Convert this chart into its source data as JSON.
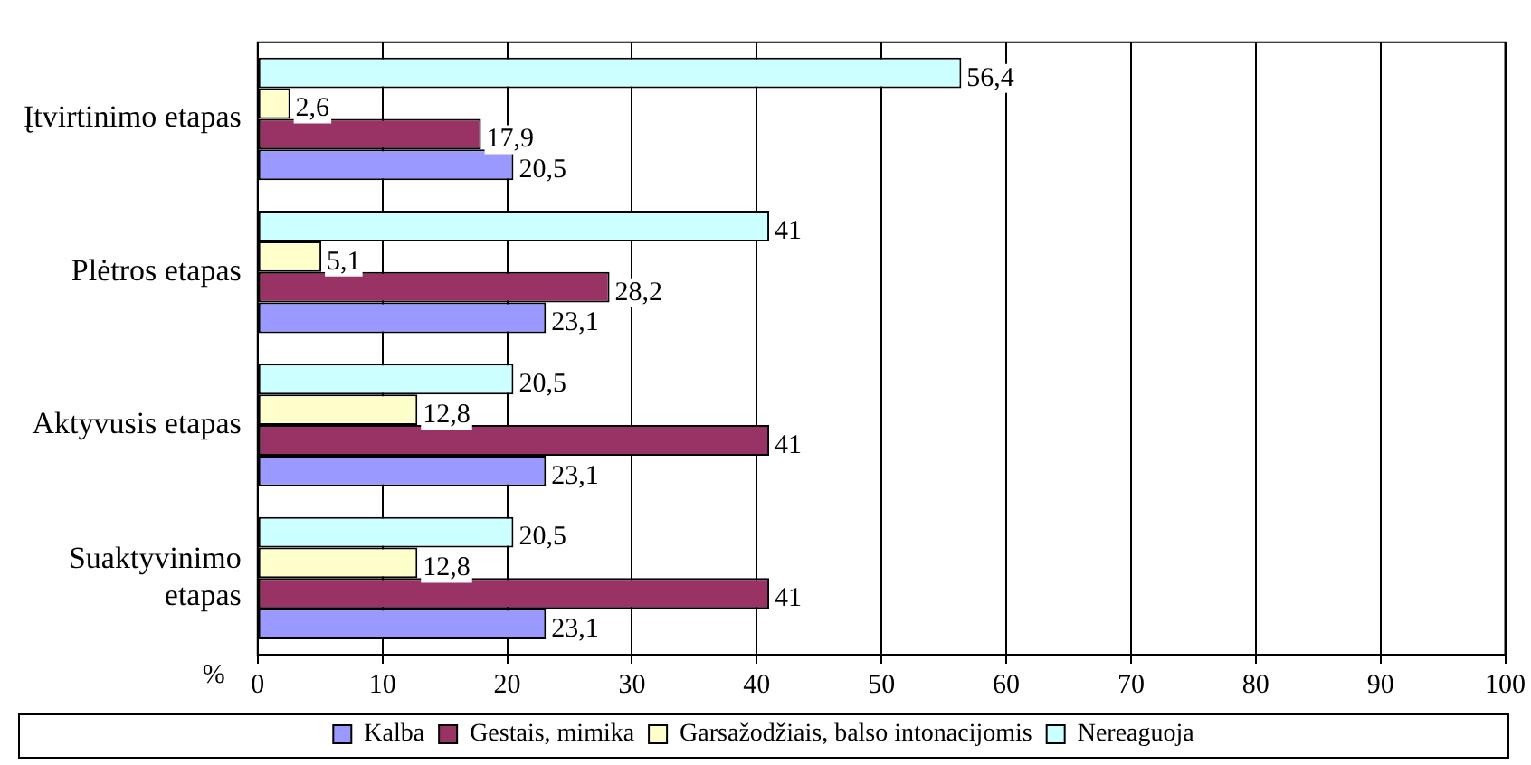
{
  "chart_data": {
    "type": "bar",
    "orientation": "horizontal",
    "xlabel": "%",
    "categories": [
      "Įtvirtinimo etapas",
      "Plėtros etapas",
      "Aktyvusis etapas",
      "Suaktyvinimo etapas"
    ],
    "series": [
      {
        "name": "Kalba",
        "color": "#9999ff",
        "values": [
          20.5,
          23.1,
          23.1,
          23.1
        ],
        "value_labels": [
          "20,5",
          "23,1",
          "23,1",
          "23,1"
        ]
      },
      {
        "name": "Gestais, mimika",
        "color": "#993366",
        "values": [
          17.9,
          28.2,
          41,
          41
        ],
        "value_labels": [
          "17,9",
          "28,2",
          "41",
          "41"
        ]
      },
      {
        "name": "Garsažodžiais, balso intonacijomis",
        "color": "#ffffcc",
        "values": [
          2.6,
          5.1,
          12.8,
          12.8
        ],
        "value_labels": [
          "2,6",
          "5,1",
          "12,8",
          "12,8"
        ]
      },
      {
        "name": "Nereaguoja",
        "color": "#ccffff",
        "values": [
          56.4,
          41,
          20.5,
          20.5
        ],
        "value_labels": [
          "56,4",
          "41",
          "20,5",
          "20,5"
        ]
      }
    ],
    "xlim": [
      0,
      100
    ],
    "xticks": [
      0,
      10,
      20,
      30,
      40,
      50,
      60,
      70,
      80,
      90,
      100
    ],
    "grid": "x",
    "legend": "bottom"
  }
}
